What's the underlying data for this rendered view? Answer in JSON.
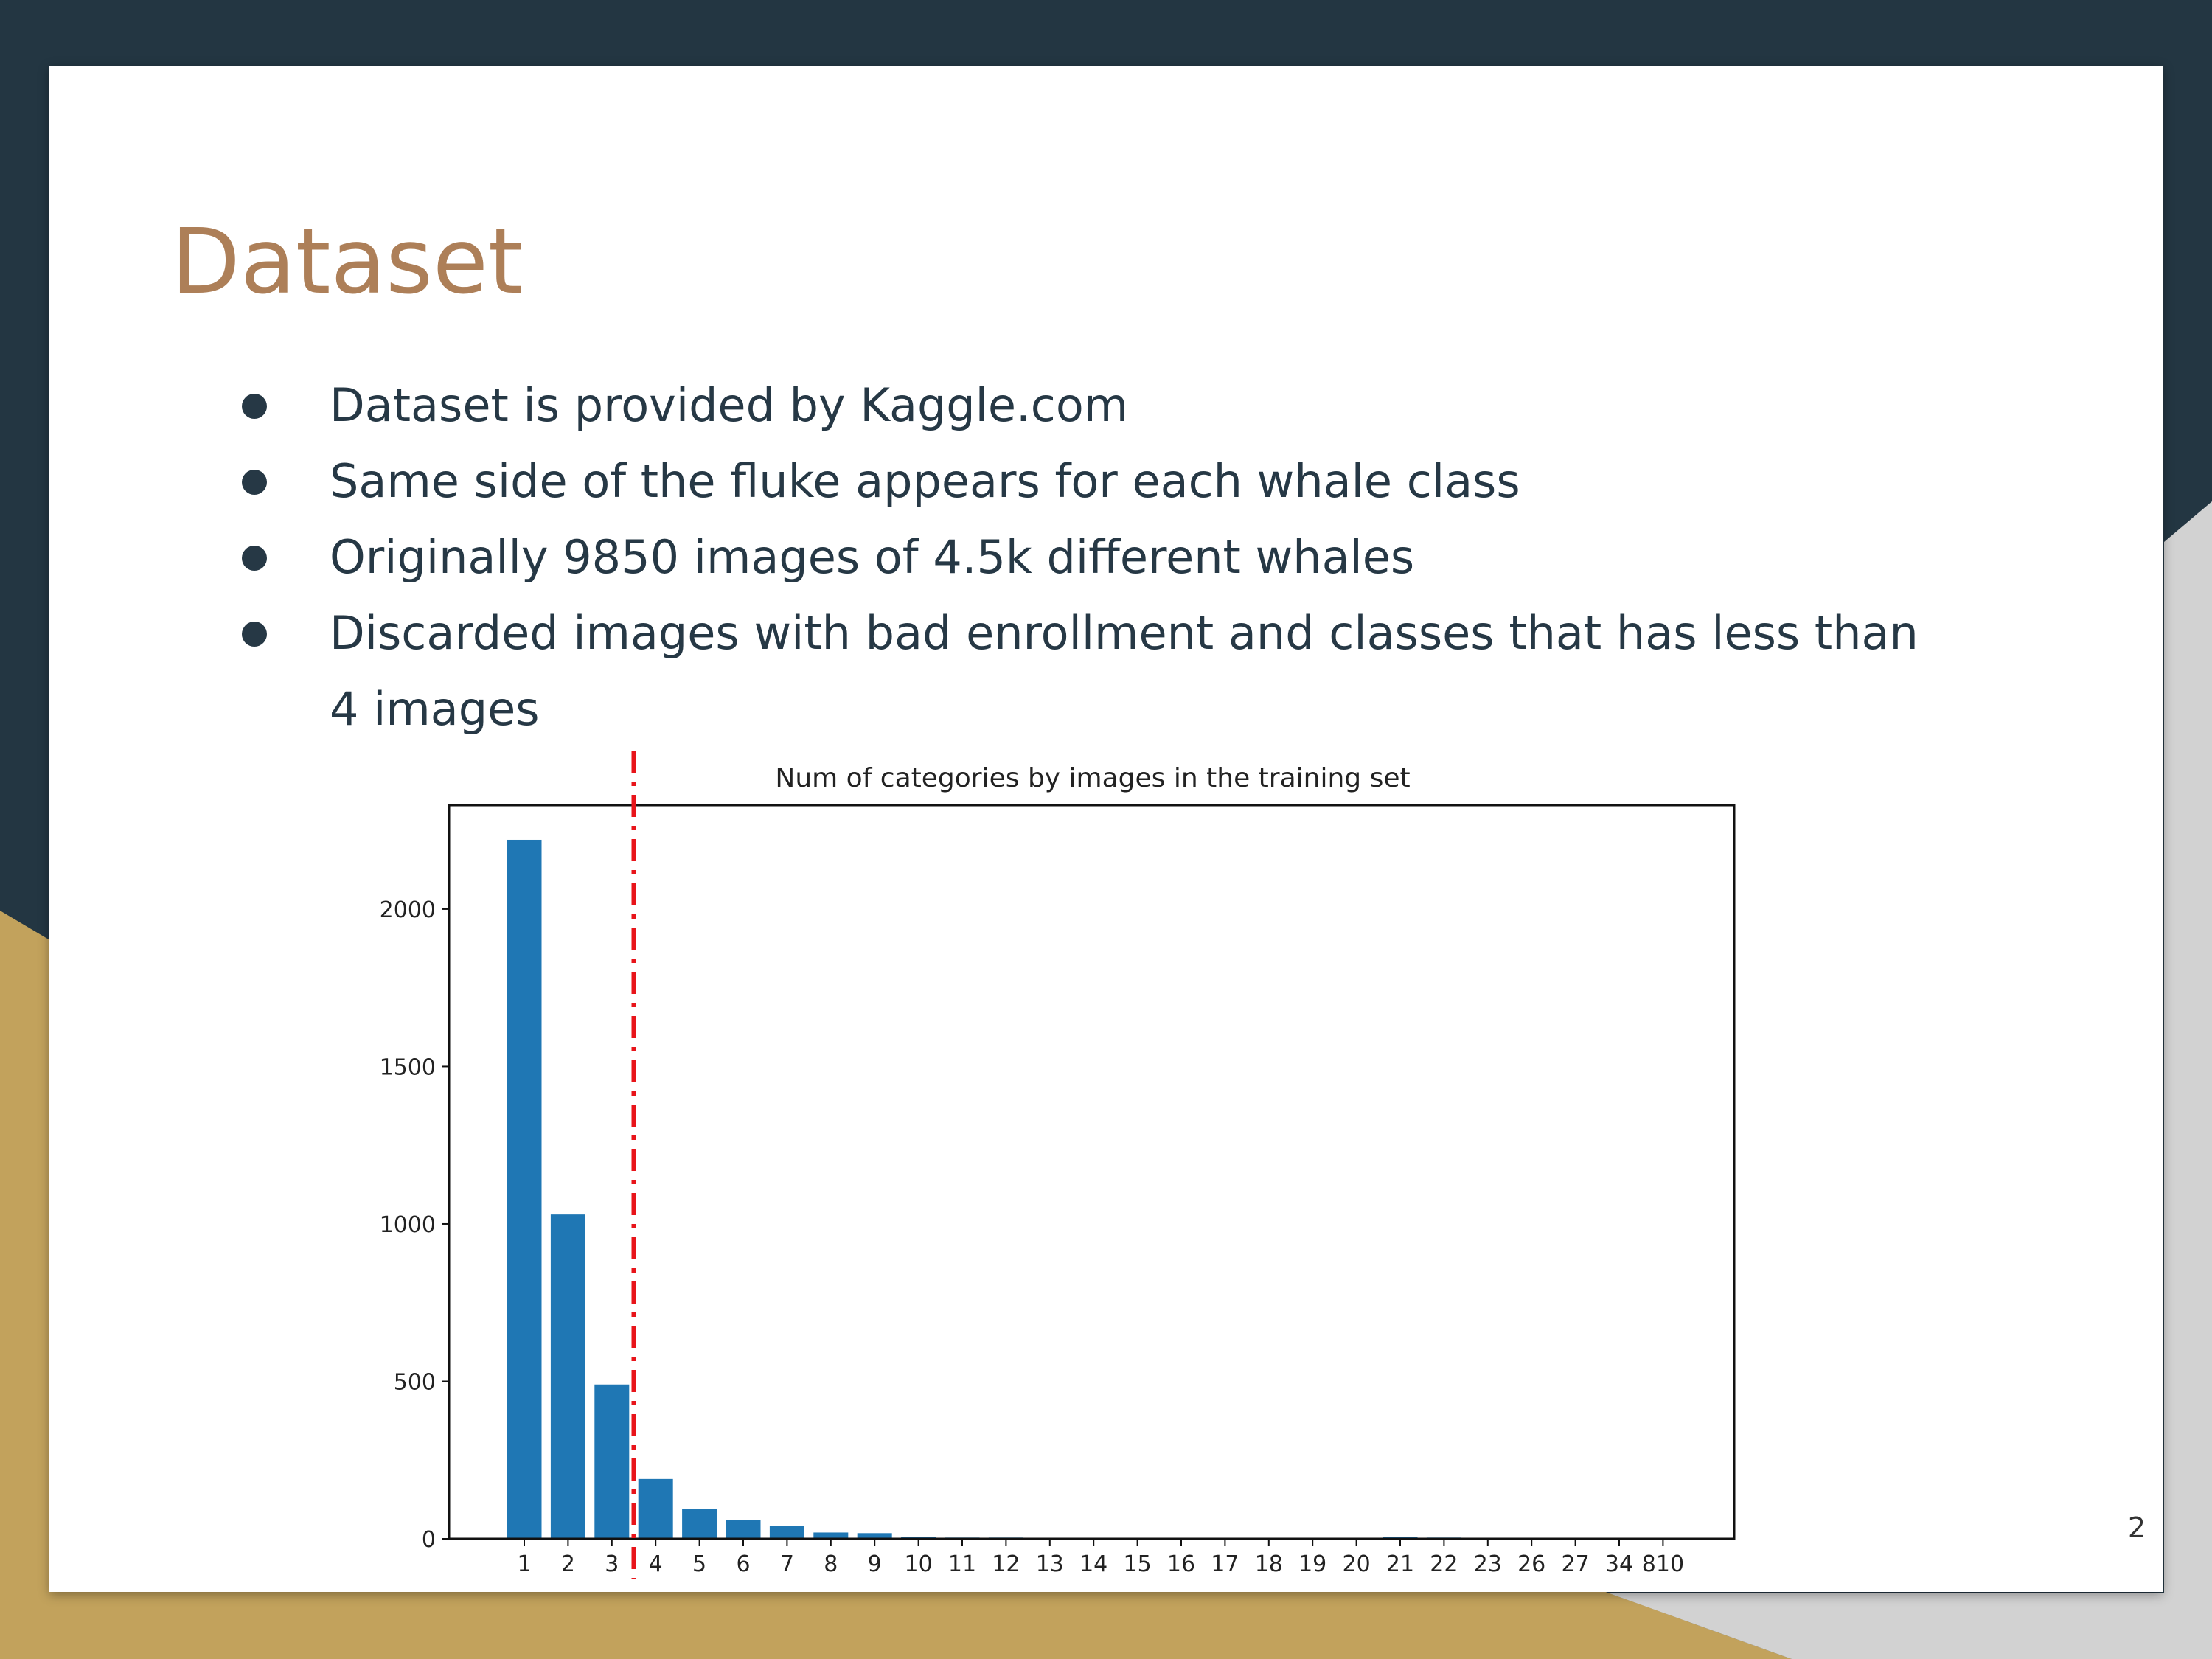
{
  "slide": {
    "title": "Dataset",
    "bullets": [
      "Dataset is provided by Kaggle.com",
      "Same side of the fluke appears for each whale class",
      "Originally 9850 images of 4.5k different whales",
      "Discarded images with bad enrollment and classes that has less than 4 images"
    ],
    "page_number": "2"
  },
  "colors": {
    "background_dark": "#233642",
    "accent_gold": "#c2a25c",
    "accent_grey": "#d2d2d2",
    "title": "#ad7f58",
    "text": "#263845",
    "bar": "#1f77b4",
    "cutoff_line": "#e8141a"
  },
  "chart_data": {
    "type": "bar",
    "title": "Num of categories by images in the training set",
    "xlabel": "",
    "ylabel": "",
    "categories": [
      "1",
      "2",
      "3",
      "4",
      "5",
      "6",
      "7",
      "8",
      "9",
      "10",
      "11",
      "12",
      "13",
      "14",
      "15",
      "16",
      "17",
      "18",
      "19",
      "20",
      "21",
      "22",
      "23",
      "26",
      "27",
      "34",
      "810"
    ],
    "values": [
      2220,
      1030,
      490,
      190,
      95,
      60,
      40,
      20,
      18,
      5,
      4,
      4,
      3,
      3,
      3,
      2,
      2,
      1,
      1,
      1,
      6,
      4,
      1,
      1,
      1,
      1,
      1
    ],
    "ylim": [
      0,
      2330
    ],
    "yticks": [
      0,
      500,
      1000,
      1500,
      2000
    ],
    "grid": false,
    "cutoff_between": [
      "3",
      "4"
    ]
  }
}
